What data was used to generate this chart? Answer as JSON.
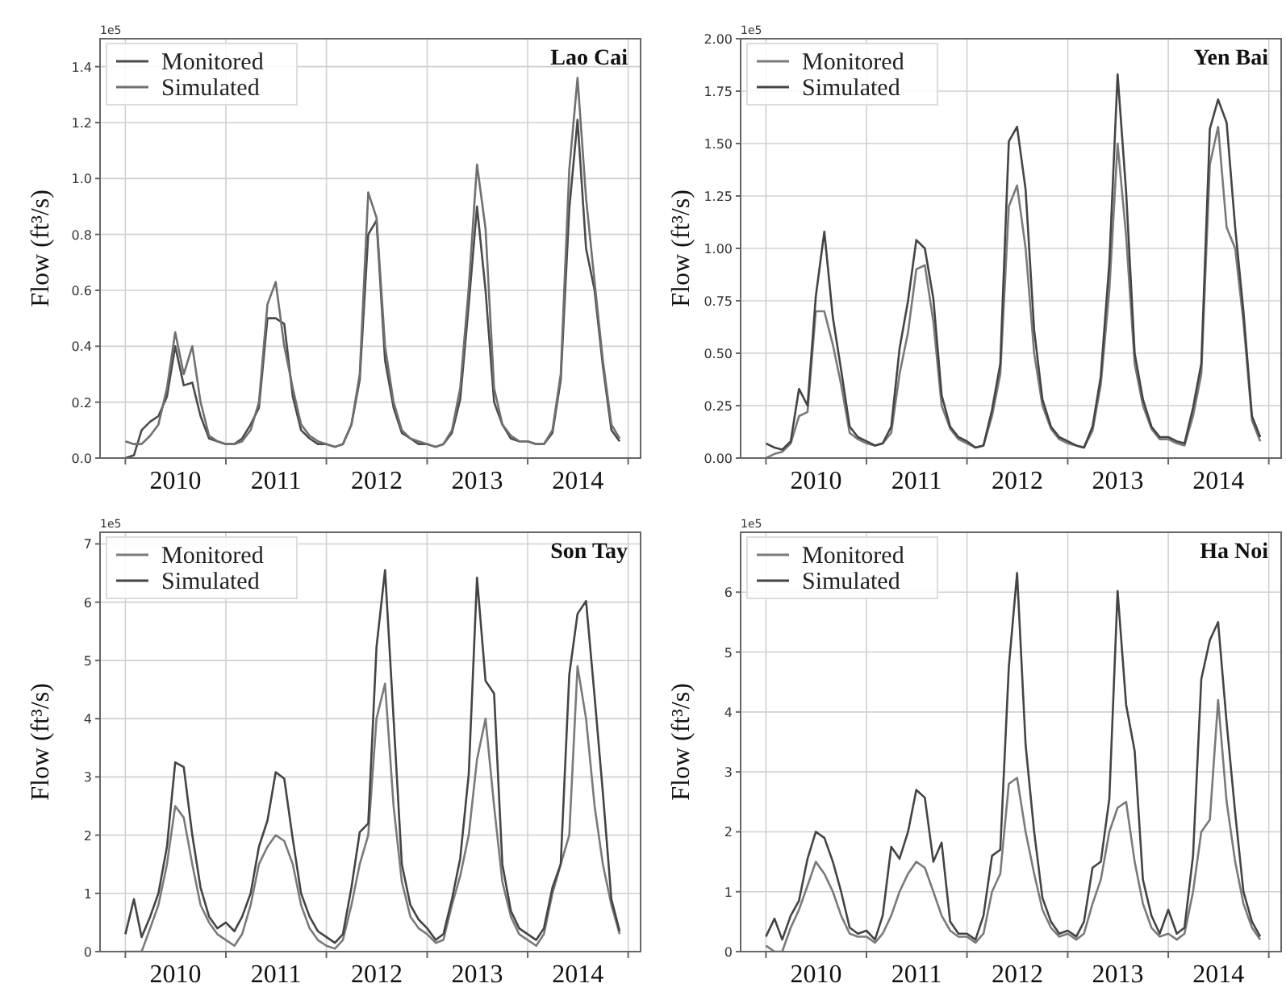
{
  "chart_data": [
    {
      "type": "line",
      "title": "Lao Cai",
      "ylabel": "Flow (ft³/s)",
      "annotations": [
        "1e5"
      ],
      "legend": "top left",
      "grid": true,
      "line_style": "solid",
      "xlim": [
        "2009-10",
        "2015-02-15"
      ],
      "ylim": [
        0,
        1.5
      ],
      "xticks": [
        {
          "value": "2010-01",
          "label": null
        },
        {
          "value": "2010-07-02",
          "label": "2010"
        },
        {
          "value": "2011-01",
          "label": null
        },
        {
          "value": "2011-07-02",
          "label": "2011"
        },
        {
          "value": "2012-01",
          "label": null
        },
        {
          "value": "2012-07-02",
          "label": "2012"
        },
        {
          "value": "2013-01",
          "label": null
        },
        {
          "value": "2013-07-02",
          "label": "2013"
        },
        {
          "value": "2014-01",
          "label": null
        },
        {
          "value": "2014-07-02",
          "label": "2014"
        },
        {
          "value": "2015-01",
          "label": null
        }
      ],
      "yticks": [
        {
          "value": 0,
          "label": "0.0"
        },
        0.2,
        0.4,
        0.6,
        0.8,
        {
          "value": 1,
          "label": "1.0"
        },
        1.2,
        1.4
      ],
      "x": [
        "2010-01",
        "2010-02",
        "2010-03",
        "2010-04",
        "2010-05",
        "2010-06",
        "2010-07",
        "2010-08",
        "2010-09",
        "2010-10",
        "2010-11",
        "2010-12",
        "2011-01",
        "2011-02",
        "2011-03",
        "2011-04",
        "2011-05",
        "2011-06",
        "2011-07",
        "2011-08",
        "2011-09",
        "2011-10",
        "2011-11",
        "2011-12",
        "2012-01",
        "2012-02",
        "2012-03",
        "2012-04",
        "2012-05",
        "2012-06",
        "2012-07",
        "2012-08",
        "2012-09",
        "2012-10",
        "2012-11",
        "2012-12",
        "2013-01",
        "2013-02",
        "2013-03",
        "2013-04",
        "2013-05",
        "2013-06",
        "2013-07",
        "2013-08",
        "2013-09",
        "2013-10",
        "2013-11",
        "2013-12",
        "2014-01",
        "2014-02",
        "2014-03",
        "2014-04",
        "2014-05",
        "2014-06",
        "2014-07",
        "2014-08",
        "2014-09",
        "2014-10",
        "2014-11",
        "2014-12"
      ],
      "series": [
        {
          "name": "Monitored",
          "color": "#4a4a4a",
          "values": [
            0,
            0.01,
            0.1,
            0.13,
            0.15,
            0.22,
            0.4,
            0.26,
            0.27,
            0.15,
            0.07,
            0.06,
            0.05,
            0.05,
            0.07,
            0.12,
            0.18,
            0.5,
            0.5,
            0.48,
            0.22,
            0.1,
            0.07,
            0.05,
            0.05,
            0.04,
            0.05,
            0.12,
            0.28,
            0.8,
            0.85,
            0.35,
            0.18,
            0.09,
            0.07,
            0.05,
            0.05,
            0.04,
            0.05,
            0.09,
            0.21,
            0.55,
            0.9,
            0.6,
            0.2,
            0.12,
            0.07,
            0.06,
            0.06,
            0.05,
            0.05,
            0.09,
            0.28,
            0.89,
            1.21,
            0.75,
            0.6,
            0.33,
            0.1,
            0.06
          ]
        },
        {
          "name": "Simulated",
          "color": "#707070",
          "values": [
            0.06,
            0.05,
            0.05,
            0.08,
            0.12,
            0.25,
            0.45,
            0.3,
            0.4,
            0.2,
            0.08,
            0.06,
            0.05,
            0.05,
            0.06,
            0.1,
            0.2,
            0.55,
            0.63,
            0.4,
            0.25,
            0.12,
            0.08,
            0.06,
            0.05,
            0.04,
            0.05,
            0.12,
            0.3,
            0.95,
            0.86,
            0.4,
            0.2,
            0.1,
            0.07,
            0.06,
            0.05,
            0.04,
            0.05,
            0.1,
            0.25,
            0.61,
            1.05,
            0.82,
            0.25,
            0.12,
            0.08,
            0.06,
            0.06,
            0.05,
            0.05,
            0.1,
            0.3,
            1.03,
            1.36,
            0.93,
            0.63,
            0.35,
            0.12,
            0.07
          ]
        }
      ]
    },
    {
      "type": "line",
      "title": "Yen Bai",
      "ylabel": "Flow (ft³/s)",
      "annotations": [
        "1e5"
      ],
      "legend": "top left",
      "grid": true,
      "line_style": "solid",
      "xlim": [
        "2009-10",
        "2015-02-15"
      ],
      "ylim": [
        0,
        2
      ],
      "xticks": [
        {
          "value": "2010-01",
          "label": null
        },
        {
          "value": "2010-07-02",
          "label": "2010"
        },
        {
          "value": "2011-01",
          "label": null
        },
        {
          "value": "2011-07-02",
          "label": "2011"
        },
        {
          "value": "2012-01",
          "label": null
        },
        {
          "value": "2012-07-02",
          "label": "2012"
        },
        {
          "value": "2013-01",
          "label": null
        },
        {
          "value": "2013-07-02",
          "label": "2013"
        },
        {
          "value": "2014-01",
          "label": null
        },
        {
          "value": "2014-07-02",
          "label": "2014"
        },
        {
          "value": "2015-01",
          "label": null
        }
      ],
      "yticks": [
        {
          "value": 0,
          "label": "0.00"
        },
        0.25,
        {
          "value": 0.5,
          "label": "0.50"
        },
        0.75,
        {
          "value": 1,
          "label": "1.00"
        },
        1.25,
        {
          "value": 1.5,
          "label": "1.50"
        },
        1.75,
        {
          "value": 2,
          "label": "2.00"
        }
      ],
      "x": [
        "2010-01",
        "2010-02",
        "2010-03",
        "2010-04",
        "2010-05",
        "2010-06",
        "2010-07",
        "2010-08",
        "2010-09",
        "2010-10",
        "2010-11",
        "2010-12",
        "2011-01",
        "2011-02",
        "2011-03",
        "2011-04",
        "2011-05",
        "2011-06",
        "2011-07",
        "2011-08",
        "2011-09",
        "2011-10",
        "2011-11",
        "2011-12",
        "2012-01",
        "2012-02",
        "2012-03",
        "2012-04",
        "2012-05",
        "2012-06",
        "2012-07",
        "2012-08",
        "2012-09",
        "2012-10",
        "2012-11",
        "2012-12",
        "2013-01",
        "2013-02",
        "2013-03",
        "2013-04",
        "2013-05",
        "2013-06",
        "2013-07",
        "2013-08",
        "2013-09",
        "2013-10",
        "2013-11",
        "2013-12",
        "2014-01",
        "2014-02",
        "2014-03",
        "2014-04",
        "2014-05",
        "2014-06",
        "2014-07",
        "2014-08",
        "2014-09",
        "2014-10",
        "2014-11",
        "2014-12"
      ],
      "series": [
        {
          "name": "Monitored",
          "color": "#7a7a7a",
          "values": [
            0,
            0.02,
            0.03,
            0.07,
            0.2,
            0.22,
            0.7,
            0.7,
            0.54,
            0.35,
            0.12,
            0.09,
            0.07,
            0.06,
            0.07,
            0.12,
            0.4,
            0.6,
            0.9,
            0.92,
            0.65,
            0.25,
            0.14,
            0.09,
            0.07,
            0.05,
            0.06,
            0.2,
            0.4,
            1.2,
            1.3,
            1.0,
            0.5,
            0.25,
            0.14,
            0.09,
            0.07,
            0.06,
            0.05,
            0.13,
            0.35,
            0.8,
            1.5,
            1.06,
            0.45,
            0.25,
            0.14,
            0.09,
            0.09,
            0.07,
            0.06,
            0.2,
            0.4,
            1.4,
            1.58,
            1.1,
            1.0,
            0.65,
            0.18,
            0.08
          ]
        },
        {
          "name": "Simulated",
          "color": "#444444",
          "values": [
            0.07,
            0.05,
            0.04,
            0.08,
            0.33,
            0.25,
            0.77,
            1.08,
            0.67,
            0.42,
            0.15,
            0.1,
            0.08,
            0.06,
            0.07,
            0.15,
            0.52,
            0.75,
            1.04,
            1.0,
            0.76,
            0.3,
            0.15,
            0.1,
            0.08,
            0.05,
            0.06,
            0.23,
            0.45,
            1.51,
            1.58,
            1.28,
            0.61,
            0.28,
            0.15,
            0.1,
            0.08,
            0.06,
            0.05,
            0.15,
            0.39,
            0.93,
            1.83,
            1.27,
            0.5,
            0.28,
            0.15,
            0.1,
            0.1,
            0.08,
            0.07,
            0.24,
            0.45,
            1.57,
            1.71,
            1.6,
            1.1,
            0.7,
            0.2,
            0.1
          ]
        }
      ]
    },
    {
      "type": "line",
      "title": "Son Tay",
      "ylabel": "Flow (ft³/s)",
      "annotations": [
        "1e5"
      ],
      "legend": "top left",
      "grid": true,
      "line_style": "solid",
      "xlim": [
        "2009-10",
        "2015-02-15"
      ],
      "ylim": [
        0,
        7.2
      ],
      "xticks": [
        {
          "value": "2010-01",
          "label": null
        },
        {
          "value": "2010-07-02",
          "label": "2010"
        },
        {
          "value": "2011-01",
          "label": null
        },
        {
          "value": "2011-07-02",
          "label": "2011"
        },
        {
          "value": "2012-01",
          "label": null
        },
        {
          "value": "2012-07-02",
          "label": "2012"
        },
        {
          "value": "2013-01",
          "label": null
        },
        {
          "value": "2013-07-02",
          "label": "2013"
        },
        {
          "value": "2014-01",
          "label": null
        },
        {
          "value": "2014-07-02",
          "label": "2014"
        },
        {
          "value": "2015-01",
          "label": null
        }
      ],
      "yticks": [
        0,
        1,
        2,
        3,
        4,
        5,
        6,
        7
      ],
      "x": [
        "2010-01",
        "2010-02",
        "2010-03",
        "2010-04",
        "2010-05",
        "2010-06",
        "2010-07",
        "2010-08",
        "2010-09",
        "2010-10",
        "2010-11",
        "2010-12",
        "2011-01",
        "2011-02",
        "2011-03",
        "2011-04",
        "2011-05",
        "2011-06",
        "2011-07",
        "2011-08",
        "2011-09",
        "2011-10",
        "2011-11",
        "2011-12",
        "2012-01",
        "2012-02",
        "2012-03",
        "2012-04",
        "2012-05",
        "2012-06",
        "2012-07",
        "2012-08",
        "2012-09",
        "2012-10",
        "2012-11",
        "2012-12",
        "2013-01",
        "2013-02",
        "2013-03",
        "2013-04",
        "2013-05",
        "2013-06",
        "2013-07",
        "2013-08",
        "2013-09",
        "2013-10",
        "2013-11",
        "2013-12",
        "2014-01",
        "2014-02",
        "2014-03",
        "2014-04",
        "2014-05",
        "2014-06",
        "2014-07",
        "2014-08",
        "2014-09",
        "2014-10",
        "2014-11",
        "2014-12"
      ],
      "series": [
        {
          "name": "Monitored",
          "color": "#7a7a7a",
          "values": [
            0,
            0,
            0,
            0.4,
            0.8,
            1.5,
            2.5,
            2.3,
            1.5,
            0.8,
            0.5,
            0.3,
            0.2,
            0.1,
            0.3,
            0.8,
            1.5,
            1.8,
            2.0,
            1.9,
            1.5,
            0.8,
            0.4,
            0.2,
            0.1,
            0.05,
            0.2,
            0.8,
            1.5,
            2.0,
            4.0,
            4.6,
            2.5,
            1.2,
            0.6,
            0.4,
            0.3,
            0.15,
            0.2,
            0.8,
            1.3,
            2.0,
            3.3,
            4.0,
            2.5,
            1.2,
            0.6,
            0.3,
            0.2,
            0.1,
            0.3,
            1.0,
            1.5,
            2.0,
            4.9,
            4.0,
            2.5,
            1.5,
            0.8,
            0.3
          ]
        },
        {
          "name": "Simulated",
          "color": "#444444",
          "values": [
            0.3,
            0.9,
            0.25,
            0.6,
            1.0,
            1.8,
            3.25,
            3.17,
            2.0,
            1.1,
            0.6,
            0.4,
            0.5,
            0.35,
            0.6,
            1.0,
            1.8,
            2.25,
            3.08,
            2.97,
            1.93,
            1.0,
            0.6,
            0.35,
            0.25,
            0.15,
            0.3,
            1.1,
            2.05,
            2.2,
            5.23,
            6.55,
            4.0,
            1.5,
            0.8,
            0.55,
            0.4,
            0.2,
            0.3,
            0.9,
            1.6,
            3.05,
            6.42,
            4.65,
            4.43,
            1.5,
            0.7,
            0.4,
            0.3,
            0.2,
            0.4,
            1.1,
            1.5,
            4.75,
            5.8,
            6.02,
            4.38,
            2.73,
            0.9,
            0.35
          ]
        }
      ]
    },
    {
      "type": "line",
      "title": "Ha Noi",
      "ylabel": "Flow (ft³/s)",
      "annotations": [
        "1e5"
      ],
      "legend": "top left",
      "grid": true,
      "line_style": "solid",
      "xlim": [
        "2009-10",
        "2015-02-15"
      ],
      "ylim": [
        0,
        7
      ],
      "xticks": [
        {
          "value": "2010-01",
          "label": null
        },
        {
          "value": "2010-07-02",
          "label": "2010"
        },
        {
          "value": "2011-01",
          "label": null
        },
        {
          "value": "2011-07-02",
          "label": "2011"
        },
        {
          "value": "2012-01",
          "label": null
        },
        {
          "value": "2012-07-02",
          "label": "2012"
        },
        {
          "value": "2013-01",
          "label": null
        },
        {
          "value": "2013-07-02",
          "label": "2013"
        },
        {
          "value": "2014-01",
          "label": null
        },
        {
          "value": "2014-07-02",
          "label": "2014"
        },
        {
          "value": "2015-01",
          "label": null
        }
      ],
      "yticks": [
        0,
        1,
        2,
        3,
        4,
        5,
        6
      ],
      "x": [
        "2010-01",
        "2010-02",
        "2010-03",
        "2010-04",
        "2010-05",
        "2010-06",
        "2010-07",
        "2010-08",
        "2010-09",
        "2010-10",
        "2010-11",
        "2010-12",
        "2011-01",
        "2011-02",
        "2011-03",
        "2011-04",
        "2011-05",
        "2011-06",
        "2011-07",
        "2011-08",
        "2011-09",
        "2011-10",
        "2011-11",
        "2011-12",
        "2012-01",
        "2012-02",
        "2012-03",
        "2012-04",
        "2012-05",
        "2012-06",
        "2012-07",
        "2012-08",
        "2012-09",
        "2012-10",
        "2012-11",
        "2012-12",
        "2013-01",
        "2013-02",
        "2013-03",
        "2013-04",
        "2013-05",
        "2013-06",
        "2013-07",
        "2013-08",
        "2013-09",
        "2013-10",
        "2013-11",
        "2013-12",
        "2014-01",
        "2014-02",
        "2014-03",
        "2014-04",
        "2014-05",
        "2014-06",
        "2014-07",
        "2014-08",
        "2014-09",
        "2014-10",
        "2014-11",
        "2014-12"
      ],
      "series": [
        {
          "name": "Monitored",
          "color": "#7a7a7a",
          "values": [
            0.1,
            0,
            0,
            0.4,
            0.7,
            1.1,
            1.5,
            1.3,
            1.0,
            0.6,
            0.3,
            0.25,
            0.25,
            0.15,
            0.3,
            0.6,
            1.0,
            1.3,
            1.5,
            1.4,
            1.0,
            0.6,
            0.35,
            0.25,
            0.25,
            0.15,
            0.3,
            1.0,
            1.3,
            2.8,
            2.9,
            2.0,
            1.3,
            0.7,
            0.4,
            0.25,
            0.3,
            0.2,
            0.3,
            0.8,
            1.2,
            2.0,
            2.4,
            2.5,
            1.5,
            0.8,
            0.4,
            0.25,
            0.3,
            0.2,
            0.3,
            1.0,
            2.0,
            2.2,
            4.2,
            2.5,
            1.5,
            0.8,
            0.4,
            0.2
          ]
        },
        {
          "name": "Simulated",
          "color": "#444444",
          "values": [
            0.25,
            0.55,
            0.2,
            0.6,
            0.85,
            1.55,
            2.0,
            1.9,
            1.5,
            1.0,
            0.4,
            0.3,
            0.35,
            0.2,
            0.6,
            1.75,
            1.55,
            2.0,
            2.7,
            2.57,
            1.5,
            1.82,
            0.5,
            0.3,
            0.3,
            0.2,
            0.6,
            1.6,
            1.7,
            4.75,
            6.32,
            3.45,
            2.0,
            0.9,
            0.5,
            0.3,
            0.35,
            0.25,
            0.5,
            1.4,
            1.5,
            2.55,
            6.02,
            4.12,
            3.35,
            1.2,
            0.6,
            0.3,
            0.7,
            0.3,
            0.4,
            1.6,
            4.55,
            5.2,
            5.5,
            3.82,
            2.32,
            1.0,
            0.5,
            0.25
          ]
        }
      ]
    }
  ]
}
